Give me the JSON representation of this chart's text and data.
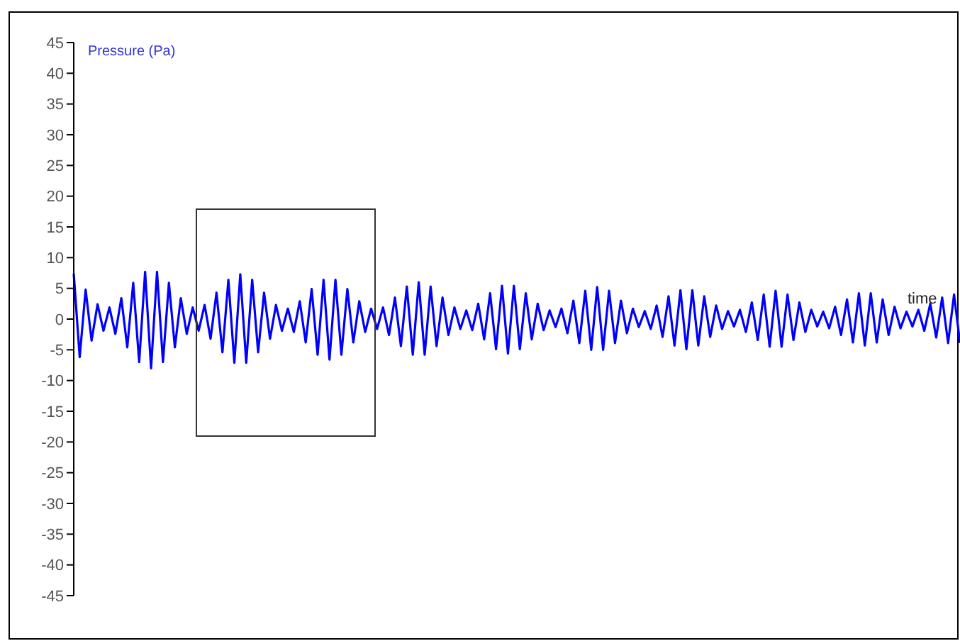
{
  "chart_data": {
    "type": "line",
    "ylabel": "Pressure (Pa)",
    "xlabel": "time",
    "color": "#0000ff",
    "tick_labels": "y",
    "categories": [
      null,
      null,
      null,
      null,
      null,
      null,
      null,
      null,
      null,
      null,
      null,
      null,
      null,
      null,
      null,
      null,
      null,
      null,
      null,
      null,
      null,
      null,
      null,
      null,
      null,
      null,
      null,
      null,
      null,
      null,
      null,
      null,
      null,
      null,
      null,
      null,
      null,
      null,
      null,
      null,
      null,
      null,
      null,
      null,
      null,
      null,
      null,
      null,
      null,
      null,
      null,
      null,
      null,
      null,
      null,
      null,
      null,
      null,
      null,
      null,
      null,
      null,
      null,
      null,
      null,
      null,
      null,
      null,
      null,
      null,
      null,
      null,
      null,
      null,
      null,
      null,
      null,
      null,
      null,
      null,
      null,
      null,
      null,
      null,
      null,
      null,
      null,
      null,
      null,
      null,
      null,
      null,
      null,
      null,
      null,
      null,
      null,
      null,
      null,
      null,
      null,
      null,
      null,
      null,
      null,
      null,
      null,
      null,
      null,
      null,
      null,
      null,
      null,
      null,
      null,
      null,
      null,
      null,
      null,
      null,
      null,
      null,
      null,
      null,
      null,
      null,
      null,
      null,
      null,
      null,
      null,
      null,
      null,
      null,
      null,
      null,
      null,
      null,
      null,
      null,
      null,
      null,
      null,
      null,
      null,
      null,
      null,
      null,
      null,
      null
    ],
    "values": [
      7.4,
      -6.2,
      4.8,
      -3.5,
      2.4,
      -1.9,
      1.9,
      -2.4,
      3.4,
      -4.6,
      5.9,
      -7.0,
      7.7,
      -8.0,
      7.7,
      -7.0,
      5.9,
      -4.6,
      3.4,
      -2.4,
      1.9,
      -1.9,
      2.3,
      -3.2,
      4.3,
      -5.4,
      6.4,
      -7.1,
      7.3,
      -7.1,
      6.4,
      -5.4,
      4.3,
      -3.2,
      2.3,
      -1.9,
      1.7,
      -2.1,
      2.9,
      -3.8,
      4.9,
      -5.8,
      6.4,
      -6.6,
      6.4,
      -5.8,
      4.9,
      -3.8,
      2.9,
      -2.1,
      1.7,
      -1.6,
      1.9,
      -2.6,
      3.5,
      -4.4,
      5.3,
      -5.8,
      6.0,
      -5.8,
      5.3,
      -4.4,
      3.5,
      -2.6,
      1.9,
      -1.6,
      1.4,
      -1.8,
      2.5,
      -3.3,
      4.2,
      -4.9,
      5.4,
      -5.6,
      5.4,
      -4.9,
      4.2,
      -3.3,
      2.5,
      -1.8,
      1.4,
      -1.3,
      1.7,
      -2.3,
      3.0,
      -3.9,
      4.6,
      -5.0,
      5.2,
      -5.0,
      4.6,
      -3.9,
      3.0,
      -2.3,
      1.7,
      -1.3,
      1.3,
      -1.6,
      2.2,
      -2.9,
      3.7,
      -4.3,
      4.7,
      -4.9,
      4.7,
      -4.3,
      3.7,
      -2.9,
      2.2,
      -1.6,
      1.3,
      -1.2,
      1.5,
      -2.1,
      2.7,
      -3.4,
      4.0,
      -4.5,
      4.6,
      -4.5,
      4.0,
      -3.4,
      2.7,
      -2.1,
      1.5,
      -1.2,
      1.2,
      -1.5,
      2.0,
      -2.6,
      3.2,
      -3.8,
      4.2,
      -4.3,
      4.2,
      -3.8,
      3.2,
      -2.6,
      2.0,
      -1.5,
      1.2,
      -1.2,
      1.5,
      -1.9,
      2.5,
      -3.0,
      3.5,
      -3.9,
      4.0,
      -3.9
    ],
    "ylim": [
      -45,
      45
    ],
    "yticks": [
      -45,
      -40,
      -35,
      -30,
      -25,
      -20,
      -15,
      -10,
      -5,
      0,
      5,
      10,
      15,
      20,
      25,
      30,
      35,
      40,
      45
    ]
  }
}
